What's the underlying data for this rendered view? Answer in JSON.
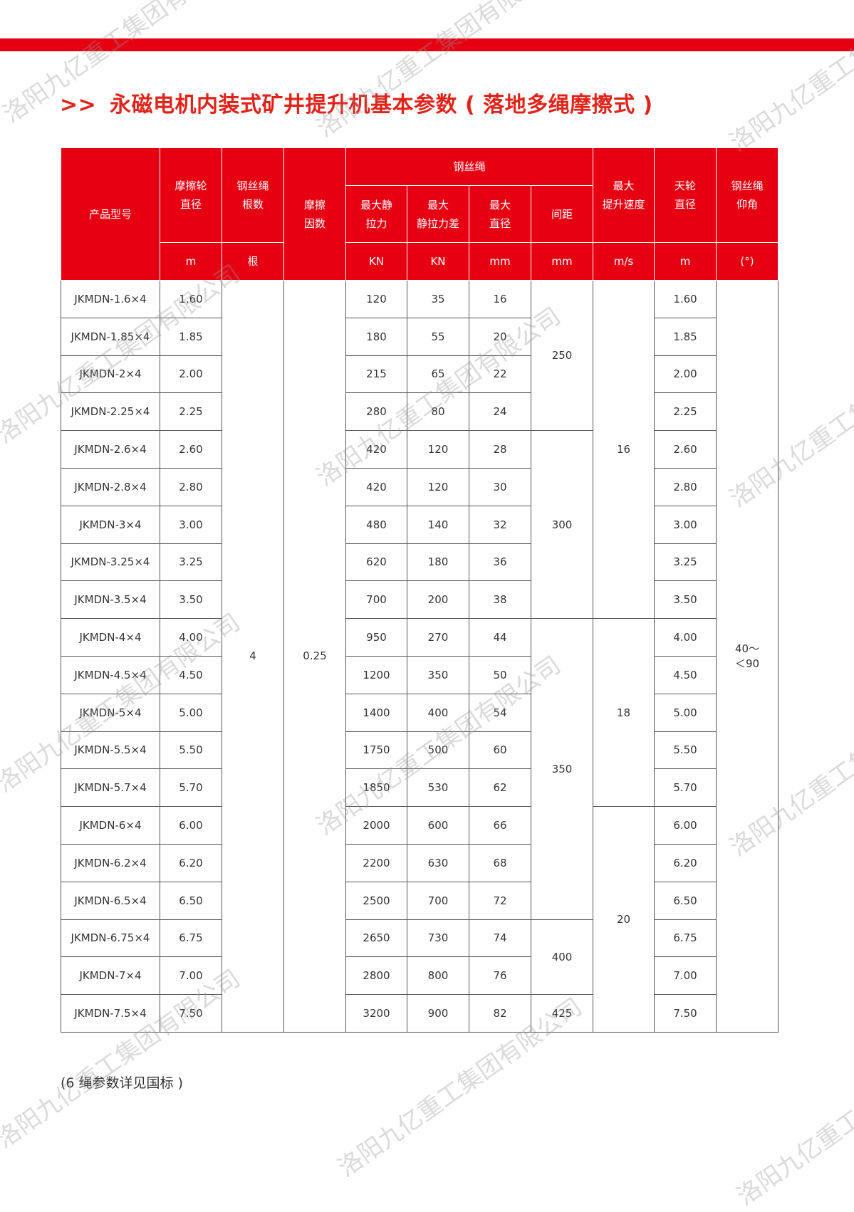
{
  "title": {
    "arrow": ">>",
    "text": "永磁电机内装式矿井提升机基本参数 ( 落地多绳摩擦式 )"
  },
  "watermark": "洛阳九亿重工集团有限公司",
  "colors": {
    "brand_red": "#e60012"
  },
  "header": {
    "model": "产品型号",
    "wheel_dia": "摩擦轮\n直径",
    "wheel_dia_unit": "m",
    "rope_count": "钢丝绳\n根数",
    "rope_count_unit": "根",
    "friction": "摩擦\n因数",
    "rope_group": "钢丝绳",
    "max_tension": "最大静\n拉力",
    "max_tension_unit": "KN",
    "max_diff": "最大\n静拉力差",
    "max_diff_unit": "KN",
    "rope_dia": "最大\n直径",
    "rope_dia_unit": "mm",
    "spacing": "间距",
    "spacing_unit": "mm",
    "speed": "最大\n提升速度",
    "speed_unit": "m/s",
    "sheave": "天轮\n直径",
    "sheave_unit": "m",
    "angle": "钢丝绳\n仰角",
    "angle_unit": "(°)"
  },
  "rows": [
    [
      "JKMDN-1.6×4",
      "1.60",
      "120",
      "35",
      "16",
      "1.60"
    ],
    [
      "JKMDN-1.85×4",
      "1.85",
      "180",
      "55",
      "20",
      "1.85"
    ],
    [
      "JKMDN-2×4",
      "2.00",
      "215",
      "65",
      "22",
      "2.00"
    ],
    [
      "JKMDN-2.25×4",
      "2.25",
      "280",
      "80",
      "24",
      "2.25"
    ],
    [
      "JKMDN-2.6×4",
      "2.60",
      "420",
      "120",
      "28",
      "2.60"
    ],
    [
      "JKMDN-2.8×4",
      "2.80",
      "420",
      "120",
      "30",
      "2.80"
    ],
    [
      "JKMDN-3×4",
      "3.00",
      "480",
      "140",
      "32",
      "3.00"
    ],
    [
      "JKMDN-3.25×4",
      "3.25",
      "620",
      "180",
      "36",
      "3.25"
    ],
    [
      "JKMDN-3.5×4",
      "3.50",
      "700",
      "200",
      "38",
      "3.50"
    ],
    [
      "JKMDN-4×4",
      "4.00",
      "950",
      "270",
      "44",
      "4.00"
    ],
    [
      "JKMDN-4.5×4",
      "4.50",
      "1200",
      "350",
      "50",
      "4.50"
    ],
    [
      "JKMDN-5×4",
      "5.00",
      "1400",
      "400",
      "54",
      "5.00"
    ],
    [
      "JKMDN-5.5×4",
      "5.50",
      "1750",
      "500",
      "60",
      "5.50"
    ],
    [
      "JKMDN-5.7×4",
      "5.70",
      "1850",
      "530",
      "62",
      "5.70"
    ],
    [
      "JKMDN-6×4",
      "6.00",
      "2000",
      "600",
      "66",
      "6.00"
    ],
    [
      "JKMDN-6.2×4",
      "6.20",
      "2200",
      "630",
      "68",
      "6.20"
    ],
    [
      "JKMDN-6.5×4",
      "6.50",
      "2500",
      "700",
      "72",
      "6.50"
    ],
    [
      "JKMDN-6.75×4",
      "6.75",
      "2650",
      "730",
      "74",
      "6.75"
    ],
    [
      "JKMDN-7×4",
      "7.00",
      "2800",
      "800",
      "76",
      "7.00"
    ],
    [
      "JKMDN-7.5×4",
      "7.50",
      "3200",
      "900",
      "82",
      "7.50"
    ]
  ],
  "merged": {
    "rope_count": "4",
    "friction": "0.25",
    "angle": "40～\n＜90",
    "spacing": [
      {
        "value": "250",
        "rows": 4
      },
      {
        "value": "300",
        "rows": 5
      },
      {
        "value": "350",
        "rows": 8
      },
      {
        "value": "400",
        "rows": 2
      },
      {
        "value": "425",
        "rows": 1
      }
    ],
    "speed": [
      {
        "value": "16",
        "rows": 9
      },
      {
        "value": "18",
        "rows": 5
      },
      {
        "value": "20",
        "rows": 6
      }
    ]
  },
  "note": "(6 绳参数详见国标 )"
}
